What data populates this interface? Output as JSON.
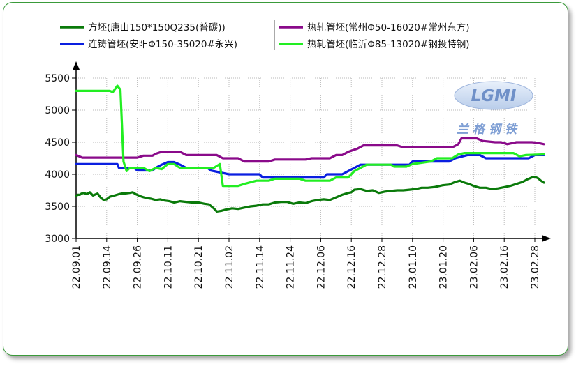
{
  "chart_data": {
    "type": "line",
    "x_dates": [
      "22.09.01",
      "22.09.14",
      "22.09.26",
      "22.10.11",
      "22.10.21",
      "22.11.02",
      "22.11.14",
      "22.11.24",
      "22.12.06",
      "22.12.16",
      "22.12.28",
      "23.01.10",
      "23.01.20",
      "23.02.06",
      "23.02.16",
      "23.02.28"
    ],
    "ylim": [
      3000,
      5500
    ],
    "yticks": [
      3000,
      3500,
      4000,
      4500,
      5000,
      5500
    ],
    "grid": true,
    "legend_position": "top",
    "series": [
      {
        "name": "方坯(唐山150*150Q235(普碳))",
        "color": "#0a7a0a",
        "points": [
          [
            0,
            3660
          ],
          [
            0.05,
            3680
          ],
          [
            0.12,
            3680
          ],
          [
            0.18,
            3700
          ],
          [
            0.25,
            3710
          ],
          [
            0.35,
            3690
          ],
          [
            0.45,
            3720
          ],
          [
            0.55,
            3670
          ],
          [
            0.7,
            3700
          ],
          [
            0.8,
            3640
          ],
          [
            0.9,
            3600
          ],
          [
            1.0,
            3610
          ],
          [
            1.1,
            3650
          ],
          [
            1.25,
            3670
          ],
          [
            1.4,
            3690
          ],
          [
            1.5,
            3700
          ],
          [
            1.6,
            3700
          ],
          [
            1.75,
            3710
          ],
          [
            1.85,
            3720
          ],
          [
            1.95,
            3690
          ],
          [
            2.05,
            3670
          ],
          [
            2.15,
            3650
          ],
          [
            2.3,
            3630
          ],
          [
            2.45,
            3620
          ],
          [
            2.6,
            3600
          ],
          [
            2.75,
            3610
          ],
          [
            2.9,
            3590
          ],
          [
            3.05,
            3580
          ],
          [
            3.2,
            3560
          ],
          [
            3.4,
            3580
          ],
          [
            3.6,
            3570
          ],
          [
            3.8,
            3560
          ],
          [
            4.0,
            3560
          ],
          [
            4.2,
            3540
          ],
          [
            4.35,
            3530
          ],
          [
            4.5,
            3470
          ],
          [
            4.6,
            3420
          ],
          [
            4.75,
            3430
          ],
          [
            4.9,
            3450
          ],
          [
            5.1,
            3470
          ],
          [
            5.3,
            3460
          ],
          [
            5.5,
            3480
          ],
          [
            5.7,
            3500
          ],
          [
            5.9,
            3510
          ],
          [
            6.1,
            3530
          ],
          [
            6.3,
            3530
          ],
          [
            6.5,
            3560
          ],
          [
            6.7,
            3570
          ],
          [
            6.9,
            3570
          ],
          [
            7.1,
            3540
          ],
          [
            7.3,
            3560
          ],
          [
            7.5,
            3550
          ],
          [
            7.7,
            3580
          ],
          [
            7.9,
            3600
          ],
          [
            8.1,
            3610
          ],
          [
            8.3,
            3600
          ],
          [
            8.5,
            3640
          ],
          [
            8.7,
            3680
          ],
          [
            8.9,
            3710
          ],
          [
            9.0,
            3720
          ],
          [
            9.1,
            3760
          ],
          [
            9.3,
            3770
          ],
          [
            9.5,
            3740
          ],
          [
            9.7,
            3750
          ],
          [
            9.9,
            3710
          ],
          [
            10.1,
            3730
          ],
          [
            10.3,
            3740
          ],
          [
            10.5,
            3750
          ],
          [
            10.7,
            3750
          ],
          [
            10.9,
            3760
          ],
          [
            11.1,
            3770
          ],
          [
            11.3,
            3790
          ],
          [
            11.5,
            3790
          ],
          [
            11.7,
            3800
          ],
          [
            11.9,
            3820
          ],
          [
            12.0,
            3830
          ],
          [
            12.2,
            3840
          ],
          [
            12.4,
            3880
          ],
          [
            12.55,
            3900
          ],
          [
            12.7,
            3870
          ],
          [
            12.85,
            3850
          ],
          [
            13.0,
            3820
          ],
          [
            13.2,
            3790
          ],
          [
            13.4,
            3790
          ],
          [
            13.6,
            3770
          ],
          [
            13.8,
            3780
          ],
          [
            14.0,
            3800
          ],
          [
            14.2,
            3820
          ],
          [
            14.4,
            3850
          ],
          [
            14.6,
            3880
          ],
          [
            14.75,
            3920
          ],
          [
            14.9,
            3950
          ],
          [
            15.0,
            3960
          ],
          [
            15.1,
            3940
          ],
          [
            15.2,
            3900
          ],
          [
            15.3,
            3870
          ]
        ]
      },
      {
        "name": "连铸管坯(安阳Φ150-35020#永兴)",
        "color": "#0a1fe0",
        "points": [
          [
            0,
            4160
          ],
          [
            1.0,
            4160
          ],
          [
            1.35,
            4160
          ],
          [
            1.4,
            4100
          ],
          [
            1.9,
            4100
          ],
          [
            2.0,
            4060
          ],
          [
            2.5,
            4060
          ],
          [
            2.6,
            4100
          ],
          [
            2.8,
            4150
          ],
          [
            3.0,
            4190
          ],
          [
            3.2,
            4190
          ],
          [
            3.4,
            4150
          ],
          [
            3.6,
            4100
          ],
          [
            4.3,
            4100
          ],
          [
            4.4,
            4060
          ],
          [
            5.0,
            4000
          ],
          [
            6.0,
            4000
          ],
          [
            6.1,
            3950
          ],
          [
            8.1,
            3950
          ],
          [
            8.2,
            4000
          ],
          [
            8.7,
            4000
          ],
          [
            8.9,
            4050
          ],
          [
            9.1,
            4100
          ],
          [
            9.3,
            4150
          ],
          [
            10.9,
            4150
          ],
          [
            11.0,
            4200
          ],
          [
            12.2,
            4200
          ],
          [
            12.4,
            4250
          ],
          [
            12.8,
            4300
          ],
          [
            13.2,
            4300
          ],
          [
            13.4,
            4250
          ],
          [
            14.8,
            4250
          ],
          [
            15.0,
            4300
          ],
          [
            15.3,
            4300
          ]
        ]
      },
      {
        "name": "热轧管坯(常州Φ50-16020#常州东方)",
        "color": "#8a0a8a",
        "points": [
          [
            0,
            4300
          ],
          [
            0.2,
            4260
          ],
          [
            2.0,
            4260
          ],
          [
            2.2,
            4290
          ],
          [
            2.5,
            4290
          ],
          [
            2.6,
            4320
          ],
          [
            2.8,
            4350
          ],
          [
            3.4,
            4350
          ],
          [
            3.6,
            4300
          ],
          [
            4.6,
            4300
          ],
          [
            4.8,
            4250
          ],
          [
            5.3,
            4250
          ],
          [
            5.5,
            4200
          ],
          [
            6.3,
            4200
          ],
          [
            6.5,
            4230
          ],
          [
            7.5,
            4230
          ],
          [
            7.7,
            4250
          ],
          [
            8.3,
            4250
          ],
          [
            8.5,
            4300
          ],
          [
            8.7,
            4300
          ],
          [
            8.9,
            4350
          ],
          [
            9.2,
            4400
          ],
          [
            9.4,
            4450
          ],
          [
            10.5,
            4450
          ],
          [
            10.7,
            4420
          ],
          [
            12.3,
            4420
          ],
          [
            12.5,
            4470
          ],
          [
            12.6,
            4560
          ],
          [
            13.1,
            4560
          ],
          [
            13.3,
            4520
          ],
          [
            13.7,
            4500
          ],
          [
            13.9,
            4500
          ],
          [
            14.1,
            4470
          ],
          [
            14.4,
            4500
          ],
          [
            14.9,
            4500
          ],
          [
            15.1,
            4490
          ],
          [
            15.3,
            4470
          ]
        ]
      },
      {
        "name": "热轧管坯(临沂Φ85-13020#钢投特钢)",
        "color": "#22ee22",
        "points": [
          [
            0,
            5300
          ],
          [
            1.1,
            5300
          ],
          [
            1.2,
            5280
          ],
          [
            1.35,
            5380
          ],
          [
            1.45,
            5320
          ],
          [
            1.55,
            4200
          ],
          [
            1.65,
            4050
          ],
          [
            1.75,
            4100
          ],
          [
            2.2,
            4100
          ],
          [
            2.4,
            4050
          ],
          [
            2.6,
            4100
          ],
          [
            2.8,
            4080
          ],
          [
            3.0,
            4160
          ],
          [
            3.2,
            4160
          ],
          [
            3.4,
            4100
          ],
          [
            4.5,
            4100
          ],
          [
            4.7,
            4160
          ],
          [
            4.8,
            3820
          ],
          [
            5.3,
            3820
          ],
          [
            5.5,
            3850
          ],
          [
            5.9,
            3900
          ],
          [
            6.3,
            3900
          ],
          [
            6.5,
            3930
          ],
          [
            7.3,
            3930
          ],
          [
            7.5,
            3900
          ],
          [
            8.3,
            3900
          ],
          [
            8.5,
            3950
          ],
          [
            8.9,
            3950
          ],
          [
            9.1,
            4050
          ],
          [
            9.3,
            4100
          ],
          [
            9.5,
            4150
          ],
          [
            10.3,
            4150
          ],
          [
            10.4,
            4120
          ],
          [
            10.8,
            4120
          ],
          [
            11.0,
            4160
          ],
          [
            11.3,
            4180
          ],
          [
            11.6,
            4200
          ],
          [
            11.8,
            4250
          ],
          [
            12.3,
            4250
          ],
          [
            12.5,
            4310
          ],
          [
            12.7,
            4330
          ],
          [
            14.3,
            4330
          ],
          [
            14.5,
            4280
          ],
          [
            14.7,
            4300
          ],
          [
            15.3,
            4310
          ]
        ]
      }
    ],
    "xlabel": "",
    "ylabel": ""
  },
  "watermark": {
    "logo_text": "LGMI",
    "cn_text": "兰格钢铁"
  }
}
